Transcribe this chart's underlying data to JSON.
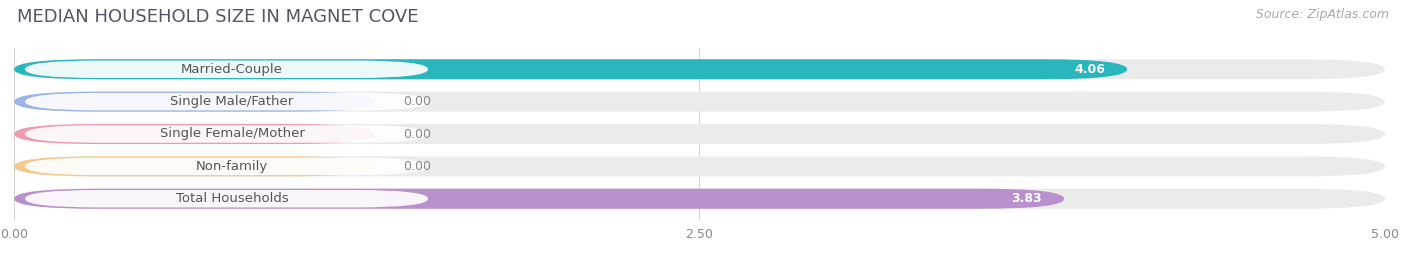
{
  "title": "MEDIAN HOUSEHOLD SIZE IN MAGNET COVE",
  "source": "Source: ZipAtlas.com",
  "categories": [
    "Married-Couple",
    "Single Male/Father",
    "Single Female/Mother",
    "Non-family",
    "Total Households"
  ],
  "values": [
    4.06,
    0.0,
    0.0,
    0.0,
    3.83
  ],
  "bar_colors": [
    "#29b6bc",
    "#9ab4e8",
    "#f09ab0",
    "#f5c890",
    "#b890cc"
  ],
  "xlim_max": 5.0,
  "xticks": [
    0.0,
    2.5,
    5.0
  ],
  "xtick_labels": [
    "0.00",
    "2.50",
    "5.00"
  ],
  "background_color": "#ffffff",
  "bar_bg_color": "#ebebeb",
  "title_fontsize": 13,
  "source_fontsize": 9,
  "bar_label_fontsize": 9.5,
  "value_fontsize": 9
}
